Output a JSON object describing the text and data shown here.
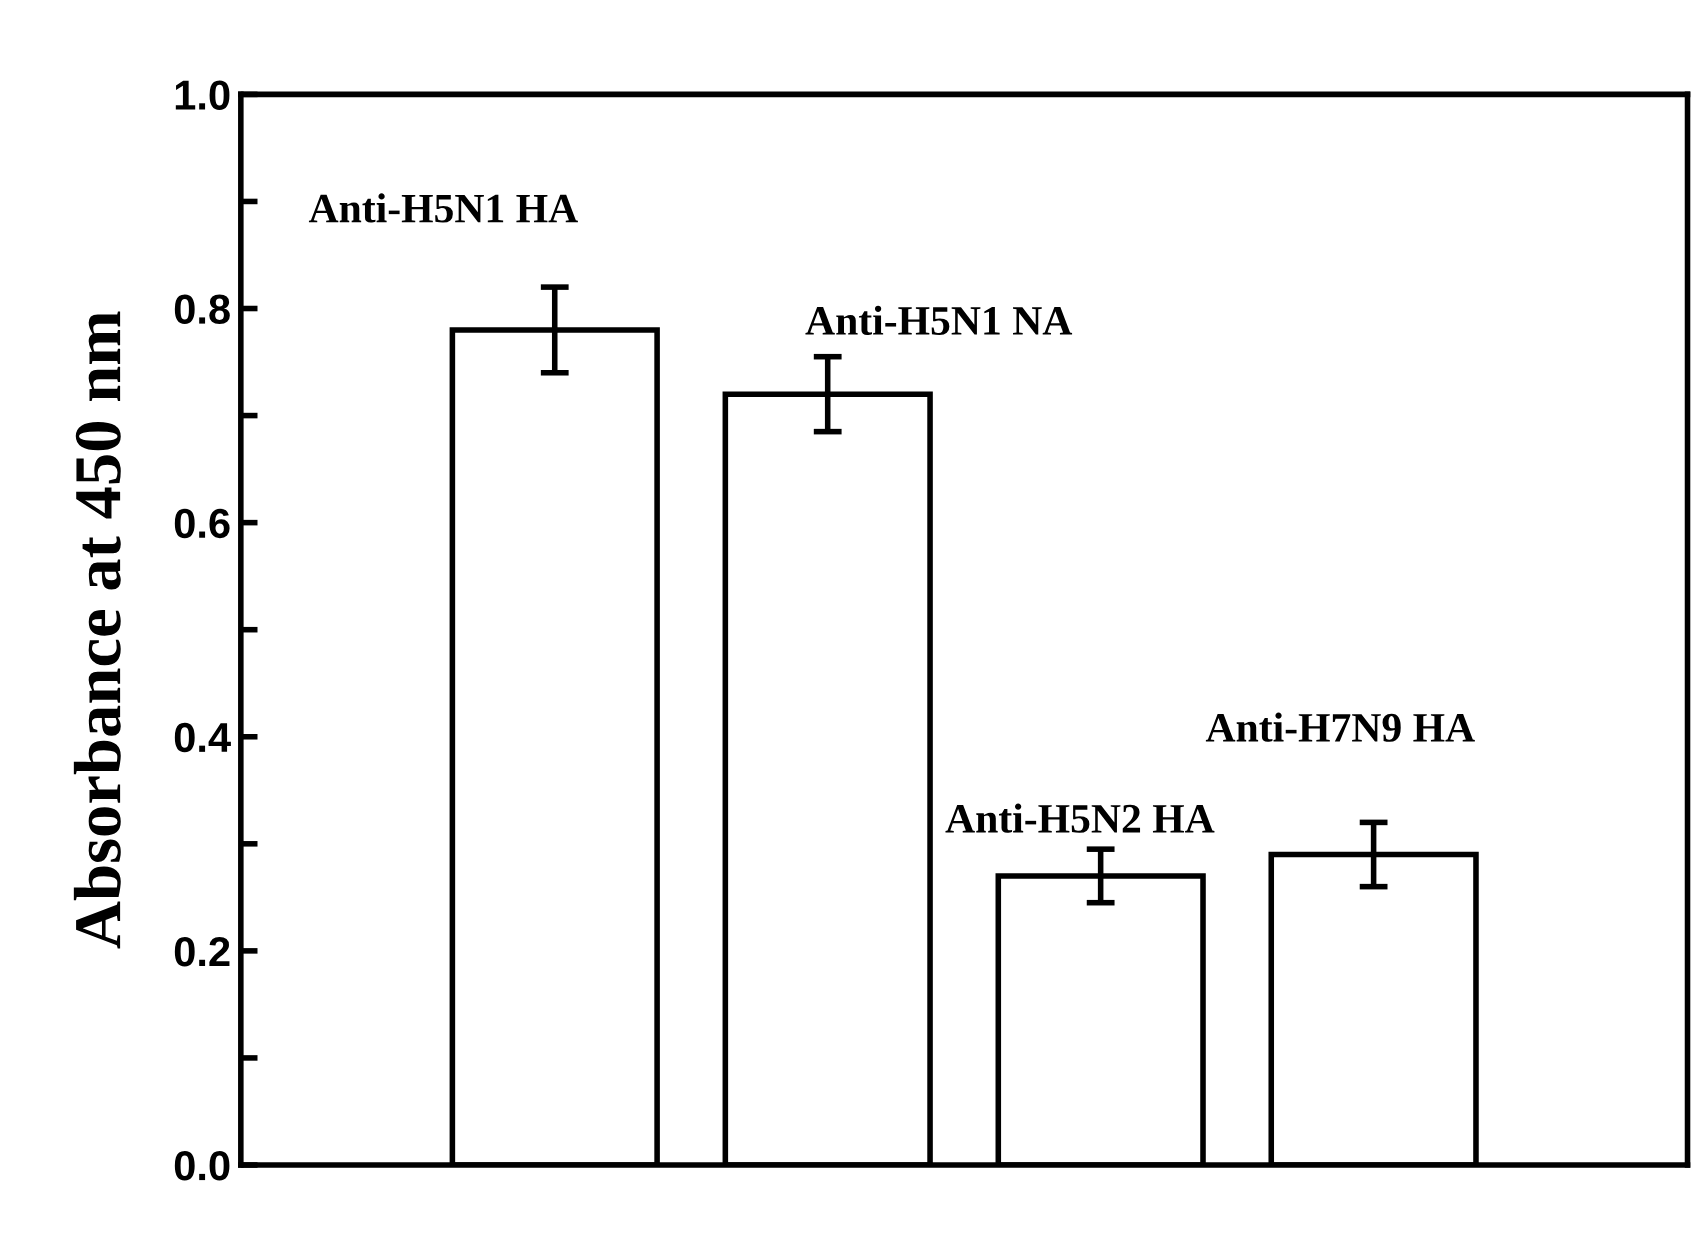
{
  "chart_data": {
    "type": "bar",
    "ylabel": "Absorbance at 450 nm",
    "categories": [
      null,
      null,
      null,
      null
    ],
    "annotations": [
      "Anti-H5N1 HA",
      "Anti-H5N1 NA",
      "Anti-H5N2 HA",
      "Anti-H7N9 HA"
    ],
    "values": [
      0.78,
      0.72,
      0.27,
      0.29
    ],
    "errors": [
      0.04,
      0.035,
      0.025,
      0.03
    ],
    "color": "#ffffff",
    "ylim": [
      0,
      1.0
    ],
    "yticks": [
      {
        "value": 0,
        "label": "0.0"
      },
      {
        "value": 0.1,
        "label": null
      },
      0.2,
      {
        "value": 0.3,
        "label": null
      },
      0.4,
      {
        "value": 0.5,
        "label": null
      },
      0.6,
      {
        "value": 0.7,
        "label": null
      },
      0.8,
      {
        "value": 0.9,
        "label": null
      },
      {
        "value": 1,
        "label": "1.0"
      }
    ],
    "tick_labels": "y",
    "grid": false,
    "legend": false
  }
}
